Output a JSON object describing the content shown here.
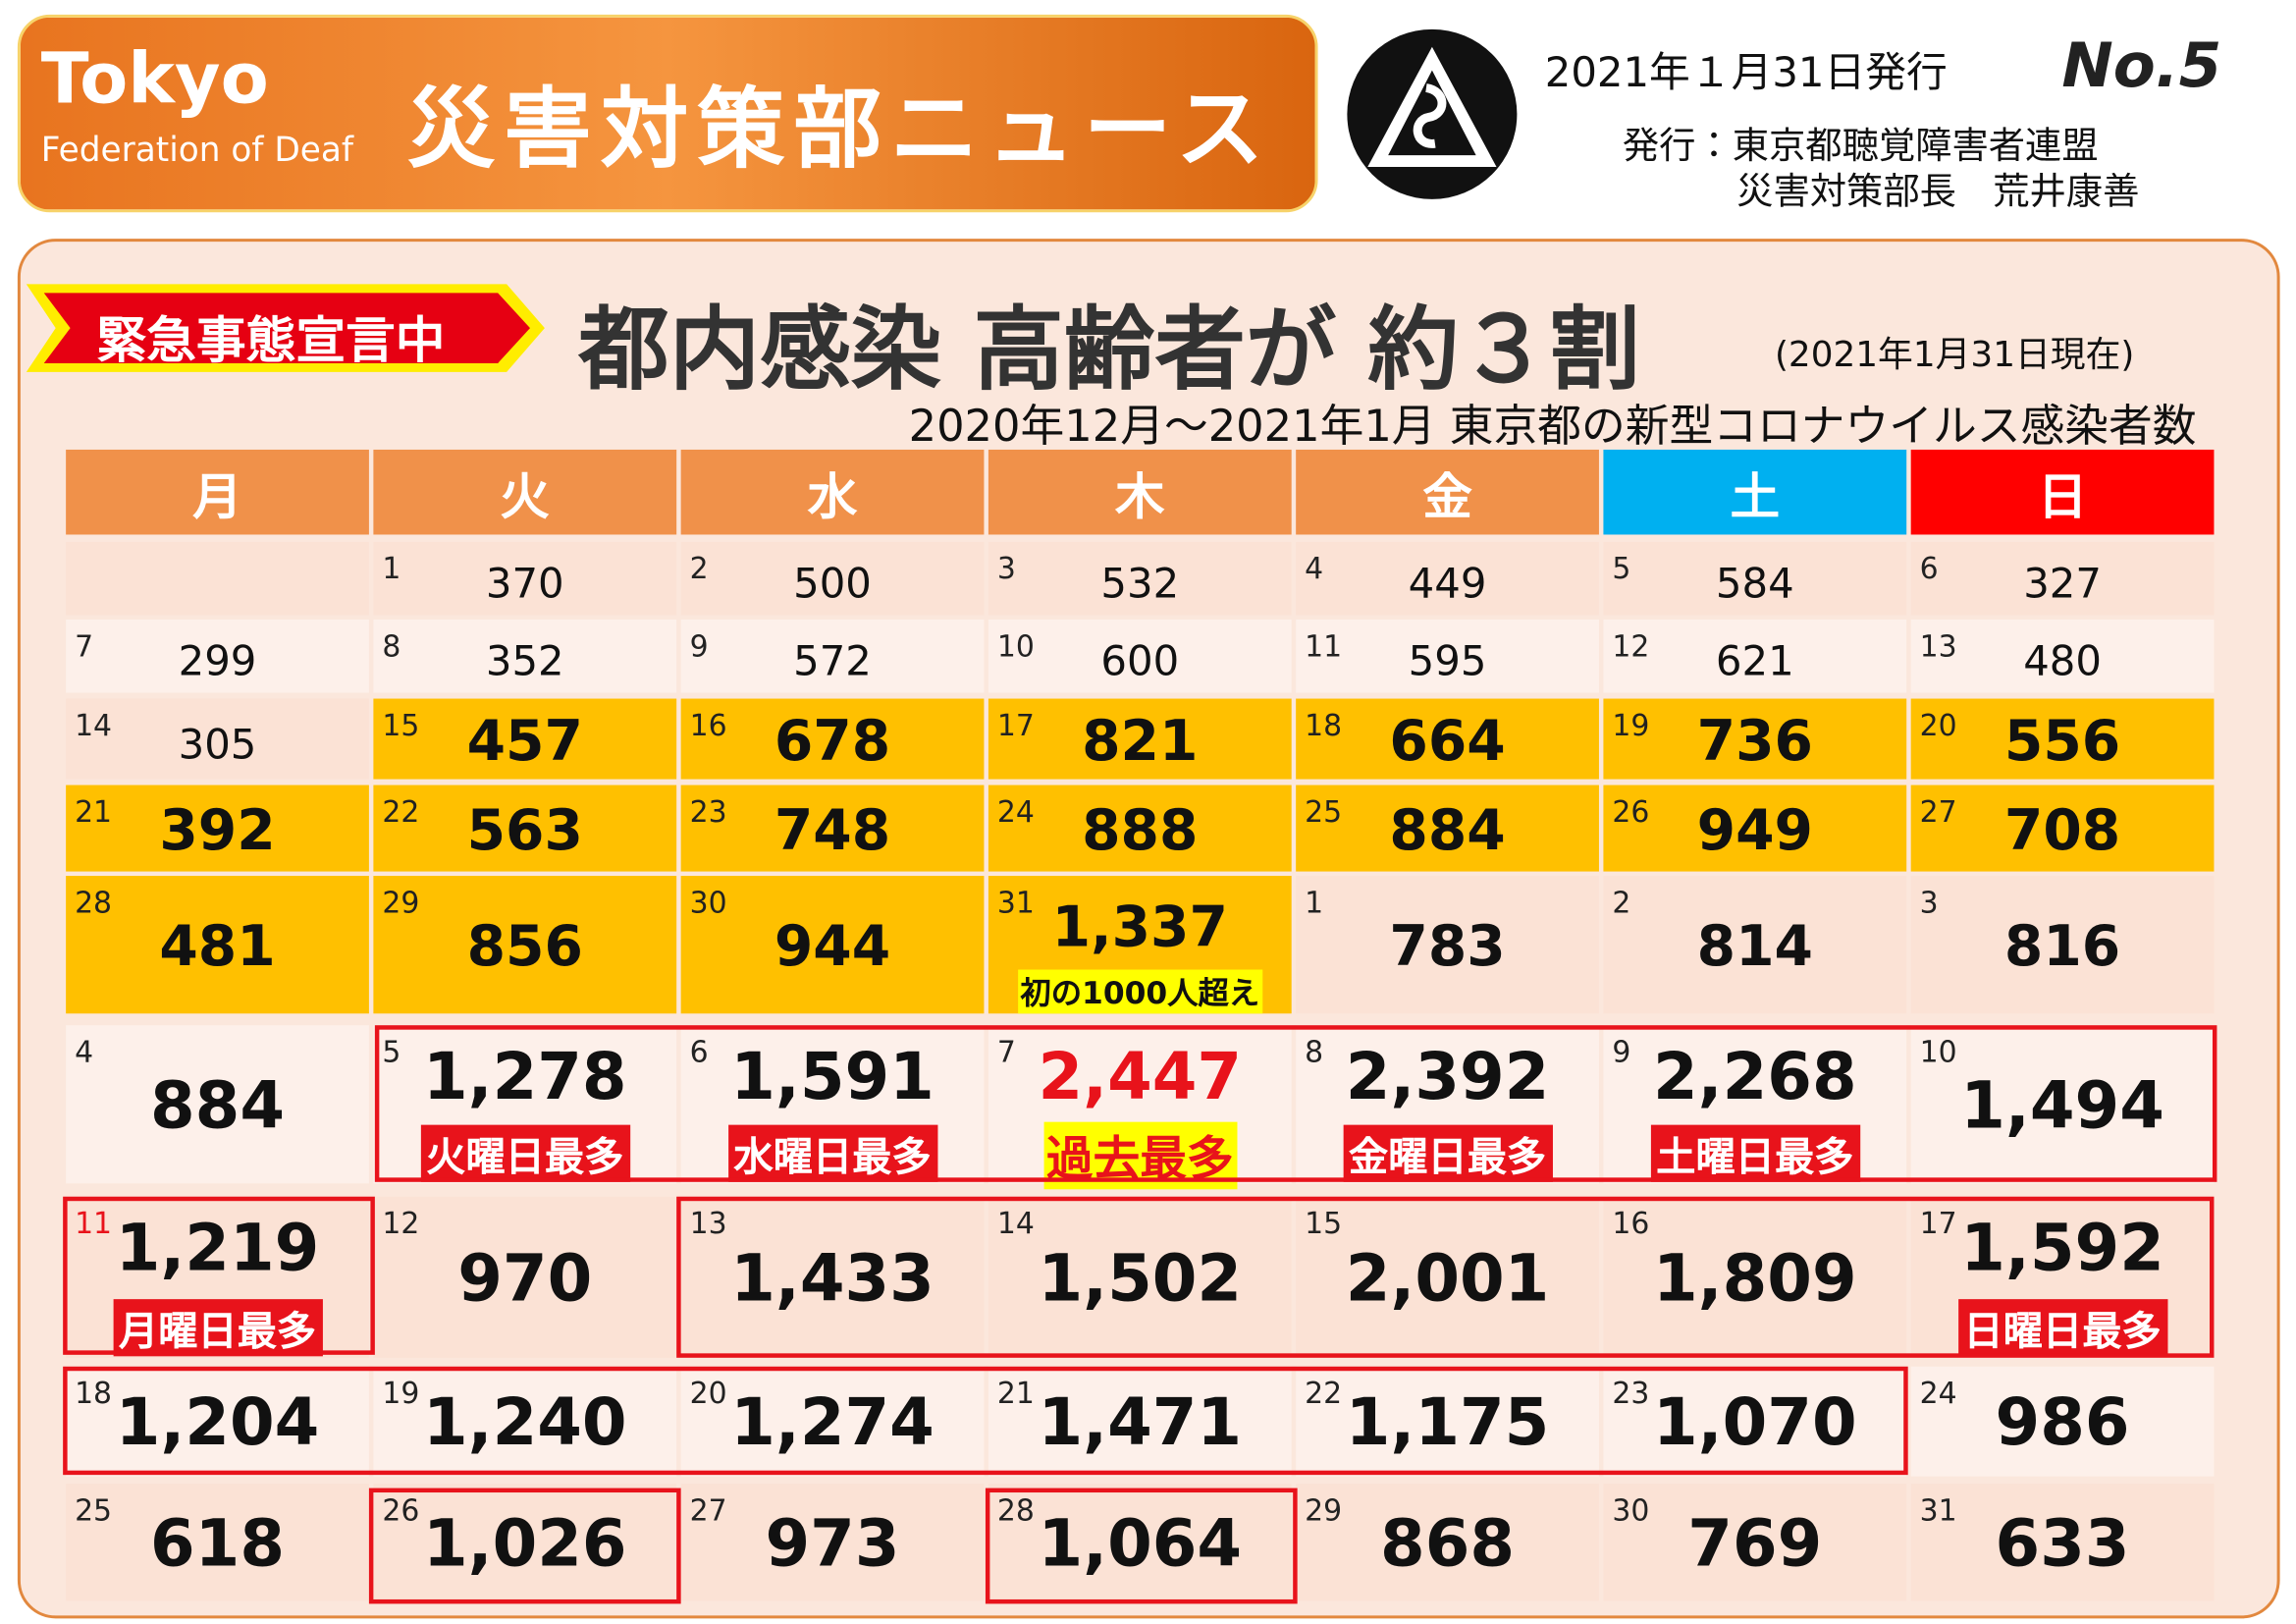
{
  "header": {
    "org_line1": "Tokyo",
    "org_line2": "Federation of Deaf",
    "title": "災害対策部ニュース",
    "date": "2021年１月31日発行",
    "issue": "No.5",
    "publisher": "発行：東京都聴覚障害者連盟",
    "role": "災害対策部長　荒井康善"
  },
  "banner": "緊急事態宣言中",
  "headline": "都内感染 高齢者が 約３割",
  "as_of": "(2021年1月31日現在)",
  "subtitle": "2020年12月～2021年1月  東京都の新型コロナウイルス感染者数",
  "table": {
    "weekdays": [
      "月",
      "火",
      "水",
      "木",
      "金",
      "土",
      "日"
    ],
    "rows": [
      [
        null,
        {
          "day": 1,
          "count": "370"
        },
        {
          "day": 2,
          "count": "500"
        },
        {
          "day": 3,
          "count": "532"
        },
        {
          "day": 4,
          "count": "449"
        },
        {
          "day": 5,
          "count": "584"
        },
        {
          "day": 6,
          "count": "327"
        }
      ],
      [
        {
          "day": 7,
          "count": "299"
        },
        {
          "day": 8,
          "count": "352"
        },
        {
          "day": 9,
          "count": "572"
        },
        {
          "day": 10,
          "count": "600"
        },
        {
          "day": 11,
          "count": "595"
        },
        {
          "day": 12,
          "count": "621"
        },
        {
          "day": 13,
          "count": "480"
        }
      ],
      [
        {
          "day": 14,
          "count": "305"
        },
        {
          "day": 15,
          "count": "457"
        },
        {
          "day": 16,
          "count": "678"
        },
        {
          "day": 17,
          "count": "821"
        },
        {
          "day": 18,
          "count": "664"
        },
        {
          "day": 19,
          "count": "736"
        },
        {
          "day": 20,
          "count": "556"
        }
      ],
      [
        {
          "day": 21,
          "count": "392"
        },
        {
          "day": 22,
          "count": "563"
        },
        {
          "day": 23,
          "count": "748"
        },
        {
          "day": 24,
          "count": "888"
        },
        {
          "day": 25,
          "count": "884"
        },
        {
          "day": 26,
          "count": "949"
        },
        {
          "day": 27,
          "count": "708"
        }
      ],
      [
        {
          "day": 28,
          "count": "481"
        },
        {
          "day": 29,
          "count": "856"
        },
        {
          "day": 30,
          "count": "944"
        },
        {
          "day": 31,
          "count": "1,337",
          "note": "初の1000人超え"
        },
        {
          "day": 1,
          "count": "783"
        },
        {
          "day": 2,
          "count": "814"
        },
        {
          "day": 3,
          "count": "816"
        }
      ],
      [
        {
          "day": 4,
          "count": "884"
        },
        {
          "day": 5,
          "count": "1,278",
          "note": "火曜日最多"
        },
        {
          "day": 6,
          "count": "1,591",
          "note": "水曜日最多"
        },
        {
          "day": 7,
          "count": "2,447",
          "note": "過去最多"
        },
        {
          "day": 8,
          "count": "2,392",
          "note": "金曜日最多"
        },
        {
          "day": 9,
          "count": "2,268",
          "note": "土曜日最多"
        },
        {
          "day": 10,
          "count": "1,494"
        }
      ],
      [
        {
          "day": 11,
          "count": "1,219",
          "note": "月曜日最多"
        },
        {
          "day": 12,
          "count": "970"
        },
        {
          "day": 13,
          "count": "1,433"
        },
        {
          "day": 14,
          "count": "1,502"
        },
        {
          "day": 15,
          "count": "2,001"
        },
        {
          "day": 16,
          "count": "1,809"
        },
        {
          "day": 17,
          "count": "1,592",
          "note": "日曜日最多"
        }
      ],
      [
        {
          "day": 18,
          "count": "1,204"
        },
        {
          "day": 19,
          "count": "1,240"
        },
        {
          "day": 20,
          "count": "1,274"
        },
        {
          "day": 21,
          "count": "1,471"
        },
        {
          "day": 22,
          "count": "1,175"
        },
        {
          "day": 23,
          "count": "1,070"
        },
        {
          "day": 24,
          "count": "986"
        }
      ],
      [
        {
          "day": 25,
          "count": "618"
        },
        {
          "day": 26,
          "count": "1,026"
        },
        {
          "day": 27,
          "count": "973"
        },
        {
          "day": 28,
          "count": "1,064"
        },
        {
          "day": 29,
          "count": "868"
        },
        {
          "day": 30,
          "count": "769"
        },
        {
          "day": 31,
          "count": "633"
        }
      ]
    ]
  }
}
